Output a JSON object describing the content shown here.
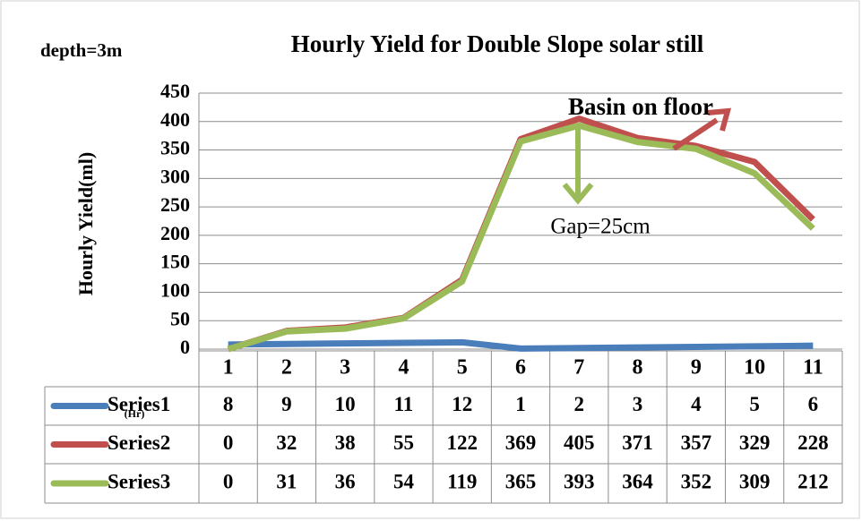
{
  "chart_data": {
    "type": "line",
    "title": "Hourly Yield for Double Slope solar still",
    "subtitle": "depth=3m",
    "ylabel": "Hourly Yield(ml)",
    "xunit": "(Hr)",
    "annotations": [
      "Basin on floor",
      "Gap=25cm"
    ],
    "categories": [
      "1",
      "2",
      "3",
      "4",
      "5",
      "6",
      "7",
      "8",
      "9",
      "10",
      "11"
    ],
    "series": [
      {
        "name": "Series1",
        "color": "#4a7ebb",
        "values": [
          8,
          9,
          10,
          11,
          12,
          1,
          2,
          3,
          4,
          5,
          6
        ]
      },
      {
        "name": "Series2",
        "color": "#c0504d",
        "values": [
          0,
          32,
          38,
          55,
          122,
          369,
          405,
          371,
          357,
          329,
          228
        ]
      },
      {
        "name": "Series3",
        "color": "#9bbb59",
        "values": [
          0,
          31,
          36,
          54,
          119,
          365,
          393,
          364,
          352,
          309,
          212
        ]
      }
    ],
    "ylim": [
      0,
      450
    ],
    "yticks": [
      0,
      50,
      100,
      150,
      200,
      250,
      300,
      350,
      400,
      450
    ],
    "grid": true
  }
}
